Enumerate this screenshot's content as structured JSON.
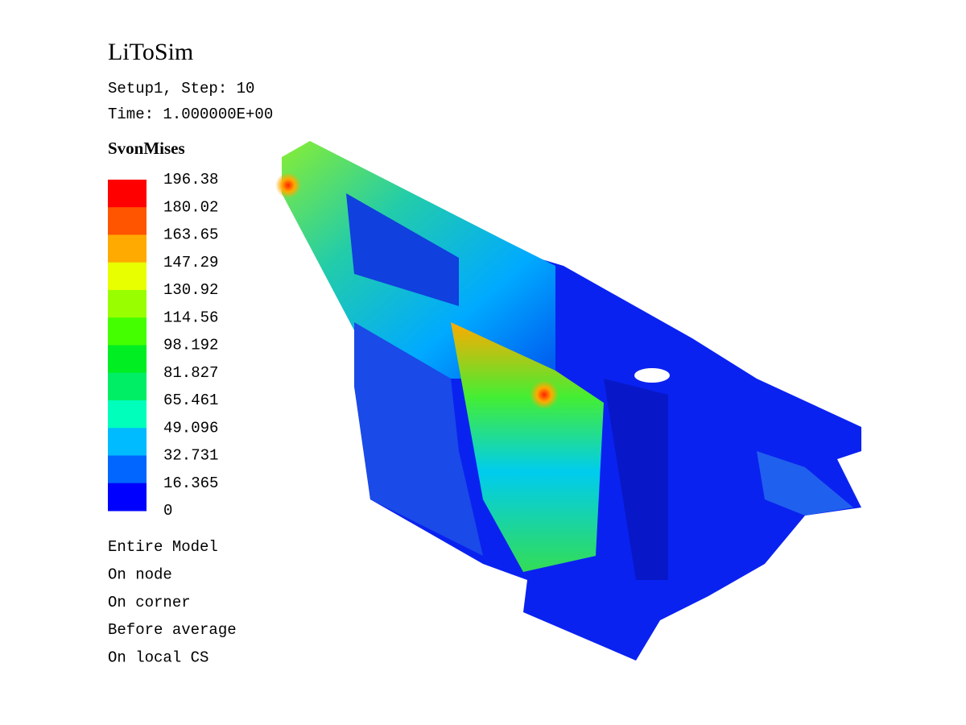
{
  "header": {
    "title": "LiToSim",
    "setup": "Setup1, Step: 10",
    "time": "Time: 1.000000E+00"
  },
  "legend": {
    "title": "SvonMises",
    "levels": [
      196.38,
      180.02,
      163.65,
      147.29,
      130.92,
      114.56,
      98.192,
      81.827,
      65.461,
      49.096,
      32.731,
      16.365,
      0
    ],
    "colors": [
      "#ff0000",
      "#ff5500",
      "#ffaa00",
      "#e8ff00",
      "#99ff00",
      "#44ff00",
      "#00ee22",
      "#00ee66",
      "#00ffbb",
      "#00bbff",
      "#0066ff",
      "#0000ff"
    ]
  },
  "info": [
    "Entire Model",
    "On node",
    "On corner",
    "Before average",
    "On local CS"
  ]
}
